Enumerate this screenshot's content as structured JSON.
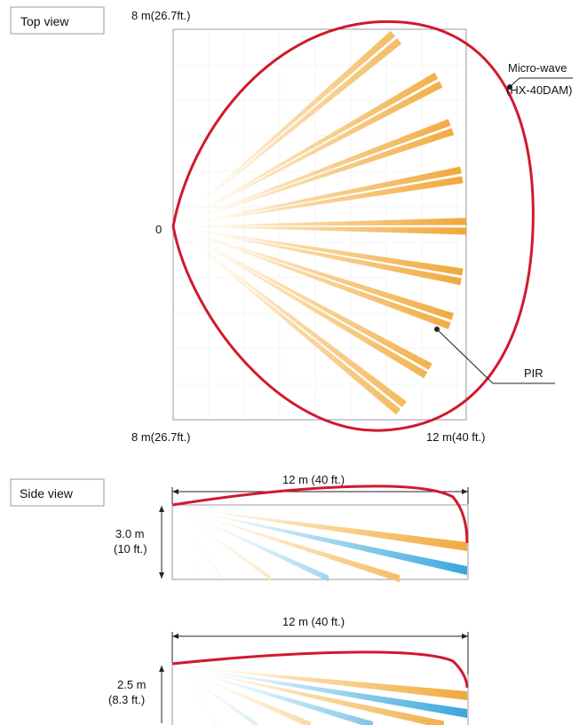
{
  "top_view": {
    "tab_label": "Top view",
    "top_left_distance": "8 m(26.7ft.)",
    "origin_label": "0",
    "bottom_left_distance": "8 m(26.7ft.)",
    "bottom_right_distance": "12 m(40 ft.)",
    "microwave_label_line1": "Micro-wave",
    "microwave_label_line2": "(HX-40DAM)",
    "pir_label": "PIR"
  },
  "side_view": {
    "tab_label": "Side view",
    "panel_1": {
      "range_label": "12 m (40 ft.)",
      "height_label_line1": "3.0 m",
      "height_label_line2": "(10 ft.)"
    },
    "panel_2": {
      "range_label": "12 m (40 ft.)",
      "height_label_line1": "2.5 m",
      "height_label_line2": "(8.3 ft.)"
    }
  },
  "colors": {
    "microwave": "#d0192e",
    "pir_beam": "#f0a93c",
    "pir_beam_light": "#fbe3bd",
    "side_beam_blue": "#3aa6dc",
    "frame": "#9a9a9a"
  }
}
